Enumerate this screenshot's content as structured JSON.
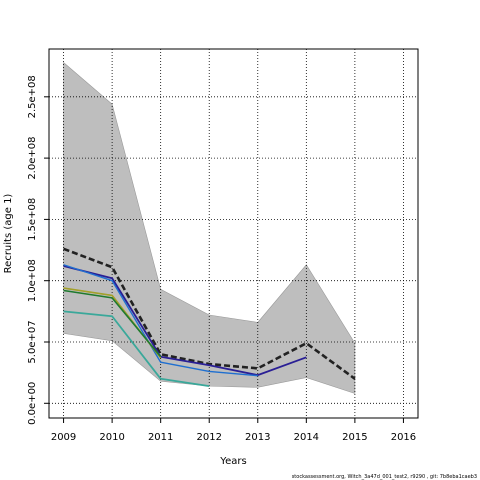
{
  "chart_data": {
    "type": "line",
    "title": "",
    "xlabel": "Years",
    "ylabel": "Recruits (age 1)",
    "xlim": [
      2008.7,
      2016.3
    ],
    "ylim": [
      -12000000.0,
      289000000.0
    ],
    "x_ticks": [
      2009,
      2010,
      2011,
      2012,
      2013,
      2014,
      2015,
      2016
    ],
    "x_tick_labels": [
      "2009",
      "2010",
      "2011",
      "2012",
      "2013",
      "2014",
      "2015",
      "2016"
    ],
    "y_ticks": [
      0,
      50000000,
      100000000,
      150000000,
      200000000,
      250000000
    ],
    "y_tick_labels": [
      "0.0e+00",
      "5.0e+07",
      "1.0e+08",
      "1.5e+08",
      "2.0e+08",
      "2.5e+08"
    ],
    "grid": "dotted",
    "confidence_band": {
      "x": [
        2009,
        2010,
        2011,
        2012,
        2013,
        2014,
        2015
      ],
      "upper": [
        278000000,
        244000000,
        93000000,
        72000000,
        66000000,
        113000000,
        49000000
      ],
      "lower": [
        57000000,
        51000000,
        18000000,
        14000000,
        13000000,
        21000000,
        8000000
      ],
      "color": "#bebebe"
    },
    "series": [
      {
        "x": [
          2009,
          2010,
          2011,
          2012,
          2013,
          2014,
          2015
        ],
        "values": [
          126000000,
          111000000,
          40000000,
          32000000,
          28500000,
          49000000,
          20000000
        ],
        "color": "#222222",
        "style": "dashed",
        "width": 2.6
      },
      {
        "x": [
          2009,
          2010,
          2011,
          2012,
          2013,
          2014
        ],
        "values": [
          112000000,
          102000000,
          38000000,
          31000000,
          23000000,
          37500000
        ],
        "color": "#2a1f95",
        "style": "solid",
        "width": 1.8
      },
      {
        "x": [
          2009,
          2010,
          2011,
          2012,
          2013
        ],
        "values": [
          113000000,
          100000000,
          33500000,
          26000000,
          22500000
        ],
        "color": "#1f6fd0",
        "style": "solid",
        "width": 1.4
      },
      {
        "x": [
          2009,
          2010,
          2011
        ],
        "values": [
          94000000,
          88000000,
          37000000
        ],
        "color": "#a3a02a",
        "style": "solid",
        "width": 1.6
      },
      {
        "x": [
          2009,
          2010,
          2011
        ],
        "values": [
          92000000,
          86000000,
          38000000
        ],
        "color": "#1f7a2e",
        "style": "solid",
        "width": 1.6
      },
      {
        "x": [
          2009,
          2010,
          2011,
          2012
        ],
        "values": [
          75000000,
          71000000,
          20000000,
          14000000
        ],
        "color": "#3aa89a",
        "style": "solid",
        "width": 1.8
      }
    ]
  },
  "footer_text": "stockassessment.org,  Witch_3a47d_001_test2,  r9290 ,  git: 7b8eba1caeb3"
}
